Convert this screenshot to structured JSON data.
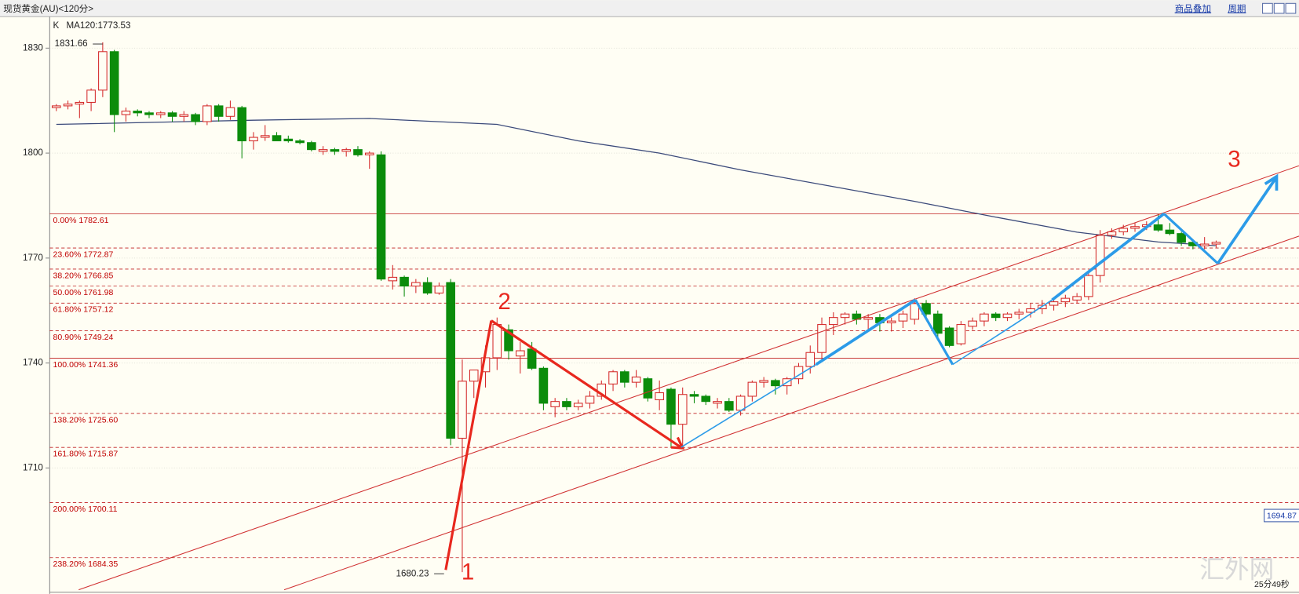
{
  "chart_data": {
    "type": "candlestick",
    "title": "现货黄金(AU)<120分>",
    "menu": [
      "商品叠加",
      "周期"
    ],
    "chart_kind_label": "K",
    "ma_label": "MA120:1773.53",
    "ylim": [
      1674,
      1839
    ],
    "yticks": [
      1710,
      1740,
      1770,
      1800,
      1830
    ],
    "grid": true,
    "up_color": "#d42a2a",
    "down_color": "#0b8c0b",
    "ma_color": "#3b4a7a",
    "ohlc": [
      [
        1813,
        1814,
        1812,
        1813.5
      ],
      [
        1813.5,
        1815,
        1812.5,
        1814
      ],
      [
        1814,
        1815,
        1810,
        1814.5
      ],
      [
        1814.5,
        1818.5,
        1812,
        1818
      ],
      [
        1818,
        1831.66,
        1816,
        1829
      ],
      [
        1829,
        1829.5,
        1806,
        1811
      ],
      [
        1811,
        1813,
        1809,
        1812
      ],
      [
        1812,
        1812.5,
        1810.5,
        1811.5
      ],
      [
        1811.5,
        1812,
        1810,
        1811
      ],
      [
        1811,
        1812,
        1810,
        1811.5
      ],
      [
        1811.5,
        1812,
        1809,
        1810.5
      ],
      [
        1810.5,
        1812,
        1809,
        1811
      ],
      [
        1811,
        1811.5,
        1808,
        1809
      ],
      [
        1809,
        1814,
        1808,
        1813.5
      ],
      [
        1813.5,
        1814,
        1809,
        1810.5
      ],
      [
        1810.5,
        1815,
        1809.5,
        1813
      ],
      [
        1813,
        1813.5,
        1798.5,
        1803.5
      ],
      [
        1803.5,
        1806,
        1801,
        1804.5
      ],
      [
        1804.5,
        1808,
        1803.5,
        1805
      ],
      [
        1805,
        1806,
        1803.5,
        1803.5
      ],
      [
        1804,
        1805,
        1803,
        1803.5
      ],
      [
        1803.5,
        1804,
        1802.5,
        1803
      ],
      [
        1803,
        1803.5,
        1800.5,
        1801
      ],
      [
        1800.5,
        1802,
        1799.5,
        1801
      ],
      [
        1801,
        1801.5,
        1799.5,
        1800.5
      ],
      [
        1800.5,
        1801.5,
        1799,
        1801
      ],
      [
        1801,
        1802,
        1799,
        1799.5
      ],
      [
        1799.5,
        1800.5,
        1795.5,
        1800
      ],
      [
        1799.5,
        1800.5,
        1763.5,
        1764
      ],
      [
        1763.5,
        1768,
        1761,
        1764.5
      ],
      [
        1764.5,
        1765,
        1759,
        1762
      ],
      [
        1762,
        1764,
        1760,
        1763
      ],
      [
        1763,
        1764.5,
        1759.5,
        1760
      ],
      [
        1760,
        1763,
        1759.5,
        1762
      ],
      [
        1763,
        1764,
        1716.5,
        1718.5
      ],
      [
        1718.5,
        1741,
        1680.23,
        1734.8
      ],
      [
        1734.8,
        1738,
        1730,
        1738
      ],
      [
        1737.5,
        1745,
        1733,
        1741.5
      ],
      [
        1741.5,
        1753,
        1738,
        1751
      ],
      [
        1749.5,
        1751,
        1741,
        1743.5
      ],
      [
        1742,
        1746,
        1737,
        1743.5
      ],
      [
        1744,
        1746,
        1738,
        1738.5
      ],
      [
        1738.5,
        1739,
        1726.5,
        1728.5
      ],
      [
        1727.5,
        1730,
        1724.5,
        1729
      ],
      [
        1729,
        1730,
        1726.5,
        1727.5
      ],
      [
        1727.5,
        1729.5,
        1726.5,
        1728.5
      ],
      [
        1728.5,
        1732,
        1727,
        1730.5
      ],
      [
        1730.5,
        1735,
        1729.5,
        1734
      ],
      [
        1734,
        1738,
        1732,
        1737.5
      ],
      [
        1737.5,
        1738,
        1733,
        1734.5
      ],
      [
        1734.5,
        1738,
        1733,
        1736
      ],
      [
        1735.5,
        1736,
        1729,
        1730
      ],
      [
        1729.5,
        1735,
        1726.5,
        1731.5
      ],
      [
        1732.5,
        1733,
        1716,
        1722.5
      ],
      [
        1722.5,
        1733,
        1715.9,
        1731
      ],
      [
        1731,
        1732,
        1728.5,
        1730.5
      ],
      [
        1730.5,
        1731,
        1728,
        1729
      ],
      [
        1728.5,
        1730,
        1727,
        1729
      ],
      [
        1729,
        1730,
        1726,
        1726.5
      ],
      [
        1726.5,
        1731,
        1725,
        1730.5
      ],
      [
        1730.5,
        1735,
        1729,
        1734.5
      ],
      [
        1734.5,
        1736,
        1733,
        1735
      ],
      [
        1735,
        1735.5,
        1731,
        1733.5
      ],
      [
        1733.5,
        1736,
        1731,
        1735.5
      ],
      [
        1735.5,
        1740,
        1734,
        1739
      ],
      [
        1739,
        1745,
        1737,
        1743
      ],
      [
        1743,
        1753,
        1741,
        1751
      ],
      [
        1751,
        1754.5,
        1748,
        1753
      ],
      [
        1753,
        1754.5,
        1751,
        1754
      ],
      [
        1754,
        1755,
        1751,
        1752.5
      ],
      [
        1752.5,
        1754,
        1749,
        1753
      ],
      [
        1753,
        1754,
        1749,
        1751.5
      ],
      [
        1751.5,
        1753,
        1749,
        1752
      ],
      [
        1752,
        1755,
        1750,
        1754
      ],
      [
        1752.5,
        1758.5,
        1751,
        1757
      ],
      [
        1757,
        1758,
        1753,
        1754
      ],
      [
        1754,
        1755,
        1747,
        1748.5
      ],
      [
        1750,
        1750.5,
        1744.5,
        1745
      ],
      [
        1745.5,
        1752,
        1745,
        1751
      ],
      [
        1750.5,
        1753,
        1749.5,
        1752
      ],
      [
        1752,
        1754.5,
        1750.5,
        1754
      ],
      [
        1754,
        1754.5,
        1752,
        1753
      ],
      [
        1753,
        1754.5,
        1752,
        1754
      ],
      [
        1754,
        1755.5,
        1752.5,
        1754.5
      ],
      [
        1754.5,
        1757,
        1753,
        1755.5
      ],
      [
        1755.5,
        1758,
        1754,
        1756.5
      ],
      [
        1756.5,
        1758.5,
        1755,
        1757.5
      ],
      [
        1757.5,
        1759.5,
        1756,
        1758.5
      ],
      [
        1758,
        1760,
        1757,
        1759
      ],
      [
        1759,
        1766,
        1758,
        1765
      ],
      [
        1765,
        1778,
        1763,
        1776.5
      ],
      [
        1776.5,
        1778.5,
        1775.5,
        1777.5
      ],
      [
        1777.5,
        1779.5,
        1776.5,
        1778.5
      ],
      [
        1778.5,
        1780,
        1777.5,
        1779
      ],
      [
        1779,
        1780.5,
        1778,
        1779.5
      ],
      [
        1779.5,
        1782.6,
        1777.5,
        1778
      ],
      [
        1778,
        1780,
        1776.5,
        1777
      ],
      [
        1777,
        1777.5,
        1773.5,
        1774.5
      ],
      [
        1774.5,
        1775,
        1772.5,
        1773.5
      ],
      [
        1773.5,
        1776,
        1772.5,
        1774
      ],
      [
        1774,
        1775,
        1773,
        1774.5
      ]
    ],
    "ma": {
      "x": [
        0,
        17,
        27,
        38,
        45,
        52,
        59,
        67,
        74,
        81,
        88,
        95,
        100
      ],
      "values": [
        1808.2,
        1809.4,
        1809.9,
        1808.2,
        1803.5,
        1800,
        1795.2,
        1790.4,
        1786.2,
        1781.7,
        1777.4,
        1774.6,
        1773.53
      ]
    },
    "fib_levels": [
      {
        "ratio": "0.00%",
        "value": 1782.61,
        "line": "solid"
      },
      {
        "ratio": "23.60%",
        "value": 1772.87,
        "line": "dashed"
      },
      {
        "ratio": "38.20%",
        "value": 1766.85,
        "line": "dashed"
      },
      {
        "ratio": "50.00%",
        "value": 1761.98,
        "line": "dashed"
      },
      {
        "ratio": "61.80%",
        "value": 1757.12,
        "line": "dashed"
      },
      {
        "ratio": "80.90%",
        "value": 1749.24,
        "line": "dashed"
      },
      {
        "ratio": "100.00%",
        "value": 1741.36,
        "line": "solid"
      },
      {
        "ratio": "138.20%",
        "value": 1725.6,
        "label": "1725.60",
        "line": "dashed"
      },
      {
        "ratio": "161.80%",
        "value": 1715.87,
        "line": "dashed"
      },
      {
        "ratio": "200.00%",
        "value": 1700.11,
        "line": "dashed"
      },
      {
        "ratio": "238.20%",
        "value": 1684.35,
        "line": "dashed"
      }
    ],
    "price_tag": 1694.87,
    "annotations": [
      "1",
      "2",
      "3"
    ],
    "timer": "25分49秒",
    "watermark": "汇外网"
  }
}
